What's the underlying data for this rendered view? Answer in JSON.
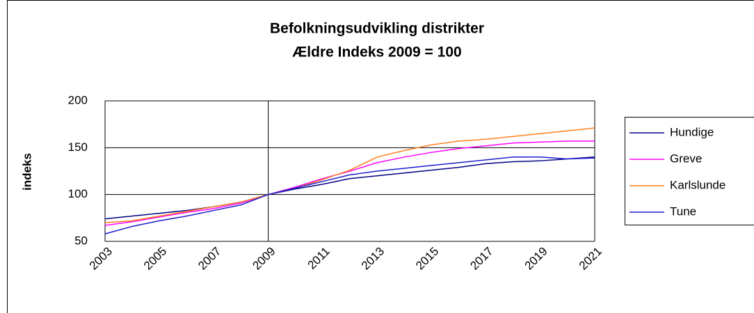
{
  "chart_data": {
    "type": "line",
    "title": "Befolkningsudvikling distrikter",
    "subtitle": "Ældre Indeks 2009 = 100",
    "y_label": "indeks",
    "categories": [
      "2003",
      null,
      "2005",
      null,
      "2007",
      null,
      "2009",
      null,
      "2011",
      null,
      "2013",
      null,
      "2015",
      null,
      "2017",
      null,
      "2019",
      null,
      "2021"
    ],
    "series": [
      {
        "name": "Hundige",
        "color": "#000080",
        "values": [
          74,
          77,
          80,
          83,
          87,
          92,
          100,
          106,
          111,
          117,
          120,
          123,
          126,
          129,
          133,
          135,
          136,
          138,
          140
        ]
      },
      {
        "name": "Greve",
        "color": "#ff00ff",
        "values": [
          67,
          71,
          76,
          81,
          85,
          91,
          100,
          108,
          117,
          125,
          134,
          140,
          145,
          149,
          152,
          155,
          156,
          157,
          157
        ]
      },
      {
        "name": "Karlslunde",
        "color": "#ff7f1e",
        "values": [
          70,
          72,
          77,
          82,
          87,
          92,
          100,
          107,
          116,
          126,
          140,
          147,
          153,
          157,
          159,
          162,
          165,
          168,
          171
        ]
      },
      {
        "name": "Tune",
        "color": "#1c1cd0",
        "values": [
          58,
          66,
          72,
          77,
          83,
          89,
          100,
          107,
          114,
          121,
          125,
          128,
          131,
          134,
          137,
          140,
          140,
          138,
          139
        ]
      }
    ],
    "ylim": [
      50,
      200
    ],
    "yticks": [
      50,
      100,
      150,
      200
    ],
    "grid": true,
    "legend": "right"
  }
}
